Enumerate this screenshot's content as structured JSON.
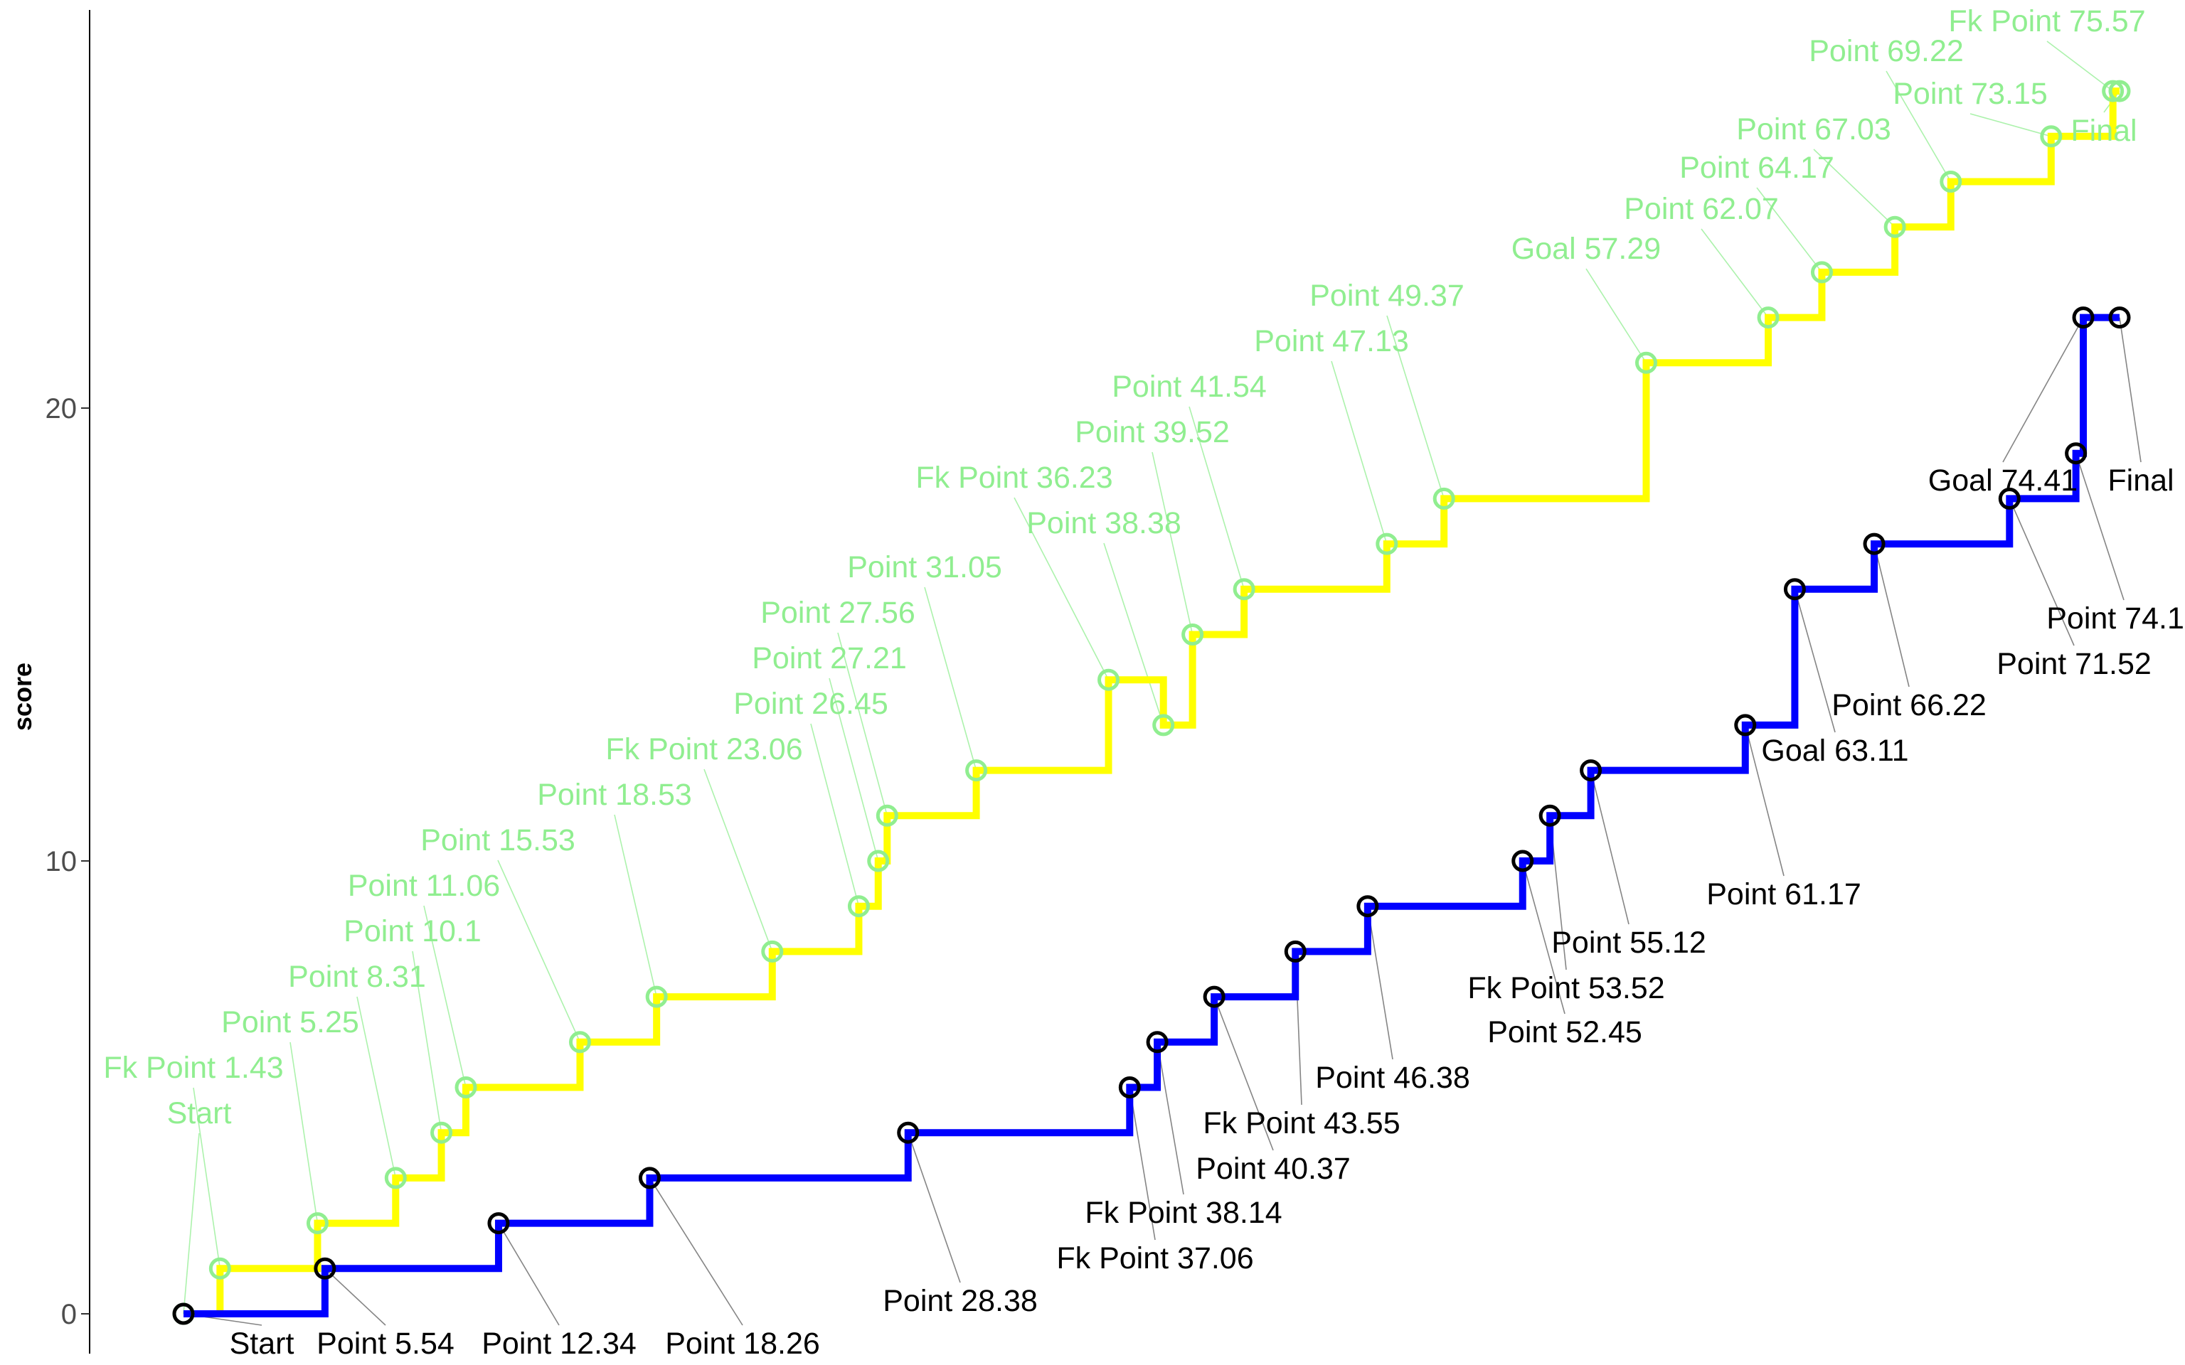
{
  "chart_data": {
    "type": "line",
    "title": "",
    "xlabel": "",
    "ylabel": "score",
    "ylim": [
      -1.3,
      28.4
    ],
    "y_ticks": [
      "0",
      "10",
      "20"
    ],
    "y_tick_values": [
      0,
      10,
      20
    ],
    "x_axis_visible": false,
    "grid": false,
    "legend": "none",
    "line_style": "step",
    "series": [
      {
        "color_line": "#FFFF00",
        "color_point": "#90EE90",
        "color_label": "#90EE90",
        "color_leader": "#90EE90",
        "points": [
          {
            "x": 0.0,
            "y": 0,
            "label": "Start"
          },
          {
            "x": 1.43,
            "y": 1,
            "label": "Fk Point 1.43"
          },
          {
            "x": 5.25,
            "y": 2,
            "label": "Point 5.25"
          },
          {
            "x": 8.31,
            "y": 3,
            "label": "Point 8.31"
          },
          {
            "x": 10.1,
            "y": 4,
            "label": "Point 10.1"
          },
          {
            "x": 11.06,
            "y": 5,
            "label": "Point 11.06"
          },
          {
            "x": 15.53,
            "y": 6,
            "label": "Point 15.53"
          },
          {
            "x": 18.53,
            "y": 7,
            "label": "Point 18.53"
          },
          {
            "x": 23.06,
            "y": 8,
            "label": "Fk Point 23.06"
          },
          {
            "x": 26.45,
            "y": 9,
            "label": "Point 26.45"
          },
          {
            "x": 27.21,
            "y": 10,
            "label": "Point 27.21"
          },
          {
            "x": 27.56,
            "y": 11,
            "label": "Point 27.56"
          },
          {
            "x": 31.05,
            "y": 12,
            "label": "Point 31.05"
          },
          {
            "x": 36.23,
            "y": 14,
            "label": "Fk Point 36.23"
          },
          {
            "x": 38.38,
            "y": 13,
            "label": "Point 38.38"
          },
          {
            "x": 39.52,
            "y": 15,
            "label": "Point 39.52"
          },
          {
            "x": 41.54,
            "y": 16,
            "label": "Point 41.54"
          },
          {
            "x": 47.13,
            "y": 17,
            "label": "Point 47.13"
          },
          {
            "x": 49.37,
            "y": 18,
            "label": "Point 49.37"
          },
          {
            "x": 57.29,
            "y": 21,
            "label": "Goal 57.29"
          },
          {
            "x": 62.07,
            "y": 22,
            "label": "Point 62.07"
          },
          {
            "x": 64.17,
            "y": 23,
            "label": "Point 64.17"
          },
          {
            "x": 67.03,
            "y": 24,
            "label": "Point 67.03"
          },
          {
            "x": 69.22,
            "y": 25,
            "label": "Point 69.22"
          },
          {
            "x": 73.15,
            "y": 26,
            "label": "Point 73.15"
          },
          {
            "x": 75.57,
            "y": 27,
            "label": "Fk Point 75.57"
          },
          {
            "x": 75.83,
            "y": 27,
            "label": "Final"
          }
        ]
      },
      {
        "color_line": "#0000FF",
        "color_point": "#000000",
        "color_label": "#000000",
        "color_leader": "#666666",
        "points": [
          {
            "x": 0.0,
            "y": 0,
            "label": "Start"
          },
          {
            "x": 5.54,
            "y": 1,
            "label": "Point 5.54"
          },
          {
            "x": 12.34,
            "y": 2,
            "label": "Point 12.34"
          },
          {
            "x": 18.26,
            "y": 3,
            "label": "Point 18.26"
          },
          {
            "x": 28.38,
            "y": 4,
            "label": "Point 28.38"
          },
          {
            "x": 37.06,
            "y": 5,
            "label": "Fk Point 37.06"
          },
          {
            "x": 38.14,
            "y": 6,
            "label": "Fk Point 38.14"
          },
          {
            "x": 40.37,
            "y": 7,
            "label": "Point 40.37"
          },
          {
            "x": 43.55,
            "y": 8,
            "label": "Fk Point 43.55"
          },
          {
            "x": 46.38,
            "y": 9,
            "label": "Point 46.38"
          },
          {
            "x": 52.45,
            "y": 10,
            "label": "Point 52.45"
          },
          {
            "x": 53.52,
            "y": 11,
            "label": "Fk Point 53.52"
          },
          {
            "x": 55.12,
            "y": 12,
            "label": "Point 55.12"
          },
          {
            "x": 61.17,
            "y": 13,
            "label": "Point 61.17"
          },
          {
            "x": 63.11,
            "y": 16,
            "label": "Goal 63.11"
          },
          {
            "x": 66.22,
            "y": 17,
            "label": "Point 66.22"
          },
          {
            "x": 71.52,
            "y": 18,
            "label": "Point 71.52"
          },
          {
            "x": 74.12,
            "y": 19,
            "label": "Point 74.12"
          },
          {
            "x": 74.41,
            "y": 22,
            "label": "Goal 74.41"
          },
          {
            "x": 75.83,
            "y": 22,
            "label": "Final"
          }
        ]
      }
    ]
  }
}
